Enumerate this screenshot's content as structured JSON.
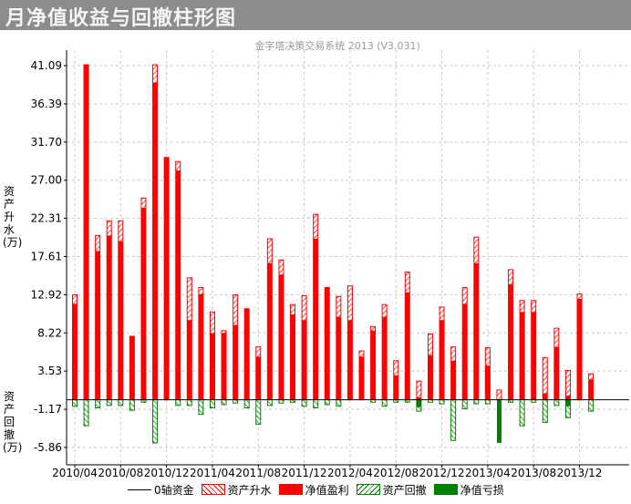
{
  "window": {
    "title": "月净值收益与回撤柱形图"
  },
  "chart_data": {
    "type": "bar",
    "subtitle": "金字塔决策交易系统 2013 (V3.031)",
    "ylabel_top": "资产升水(万)",
    "ylabel_bottom": "资产回撤(万)",
    "ylim": [
      -8.0,
      43.0
    ],
    "yticks": [
      41.09,
      36.39,
      31.7,
      27.0,
      22.31,
      17.61,
      12.92,
      8.22,
      3.53,
      -1.17,
      -5.86
    ],
    "ytick_labels": [
      "41.09",
      "36.39",
      "31.70",
      "27.00",
      "22.31",
      "17.61",
      "12.92",
      "8.22",
      "3.53",
      "-1.17",
      "-5.86"
    ],
    "x_tick_labels": [
      {
        "label": "2010/04",
        "index": 0
      },
      {
        "label": "2010/08",
        "index": 4
      },
      {
        "label": "2010/12",
        "index": 8
      },
      {
        "label": "2011/04",
        "index": 12
      },
      {
        "label": "2011/08",
        "index": 16
      },
      {
        "label": "2011/12",
        "index": 20
      },
      {
        "label": "2012/04",
        "index": 24
      },
      {
        "label": "2012/08",
        "index": 28
      },
      {
        "label": "2012/12",
        "index": 32
      },
      {
        "label": "2013/04",
        "index": 36
      },
      {
        "label": "2013/08",
        "index": 40
      },
      {
        "label": "2013/12",
        "index": 44
      }
    ],
    "grid": true,
    "legend_position": "bottom",
    "colors": {
      "profit": "#ff0000",
      "loss": "#008000",
      "zero_line": "#000000",
      "grid": "#c8c8c8",
      "title_bg": "#8c8c8c"
    },
    "legend": [
      "0轴资金",
      "资产升水",
      "净值盈利",
      "资产回撤",
      "净值亏损"
    ],
    "months": [
      {
        "up": 12.9,
        "profit": 11.8,
        "draw": -0.8,
        "loss": 0
      },
      {
        "up": 41.2,
        "profit": 41.2,
        "draw": -3.2,
        "loss": 0
      },
      {
        "up": 20.2,
        "profit": 18.3,
        "draw": -1.0,
        "loss": 0
      },
      {
        "up": 22.0,
        "profit": 20.2,
        "draw": -0.7,
        "loss": 0
      },
      {
        "up": 22.0,
        "profit": 19.5,
        "draw": -0.7,
        "loss": 0
      },
      {
        "up": 7.8,
        "profit": 7.8,
        "draw": -1.3,
        "loss": 0
      },
      {
        "up": 24.8,
        "profit": 23.6,
        "draw": -0.3,
        "loss": 0
      },
      {
        "up": 41.2,
        "profit": 39.0,
        "draw": -5.3,
        "loss": 0
      },
      {
        "up": 29.8,
        "profit": 29.8,
        "draw": 0,
        "loss": 0
      },
      {
        "up": 29.3,
        "profit": 28.2,
        "draw": -0.7,
        "loss": 0
      },
      {
        "up": 15.0,
        "profit": 9.8,
        "draw": -0.7,
        "loss": 0
      },
      {
        "up": 13.8,
        "profit": 13.0,
        "draw": -1.8,
        "loss": 0
      },
      {
        "up": 10.8,
        "profit": 8.2,
        "draw": -1.0,
        "loss": 0
      },
      {
        "up": 8.5,
        "profit": 8.2,
        "draw": -0.6,
        "loss": 0
      },
      {
        "up": 12.9,
        "profit": 9.2,
        "draw": -0.4,
        "loss": 0
      },
      {
        "up": 11.2,
        "profit": 11.2,
        "draw": -1.0,
        "loss": 0
      },
      {
        "up": 6.5,
        "profit": 5.3,
        "draw": -3.0,
        "loss": 0
      },
      {
        "up": 19.8,
        "profit": 16.8,
        "draw": -0.7,
        "loss": 0
      },
      {
        "up": 17.2,
        "profit": 15.4,
        "draw": -0.4,
        "loss": 0
      },
      {
        "up": 11.7,
        "profit": 10.5,
        "draw": -0.3,
        "loss": 0
      },
      {
        "up": 12.8,
        "profit": 9.8,
        "draw": -0.8,
        "loss": 0
      },
      {
        "up": 22.8,
        "profit": 19.8,
        "draw": -1.0,
        "loss": 0
      },
      {
        "up": 13.8,
        "profit": 13.8,
        "draw": -0.6,
        "loss": 0
      },
      {
        "up": 12.7,
        "profit": 10.2,
        "draw": -0.8,
        "loss": 0
      },
      {
        "up": 14.0,
        "profit": 9.8,
        "draw": 0,
        "loss": 0
      },
      {
        "up": 6.0,
        "profit": 5.3,
        "draw": 0,
        "loss": 0
      },
      {
        "up": 9.0,
        "profit": 8.5,
        "draw": -0.3,
        "loss": 0
      },
      {
        "up": 11.7,
        "profit": 10.2,
        "draw": -0.8,
        "loss": 0
      },
      {
        "up": 4.8,
        "profit": 3.0,
        "draw": -0.3,
        "loss": 0
      },
      {
        "up": 15.7,
        "profit": 13.2,
        "draw": -0.3,
        "loss": 0
      },
      {
        "up": 2.3,
        "profit": 0.3,
        "draw": -1.4,
        "loss": -0.9
      },
      {
        "up": 8.1,
        "profit": 5.5,
        "draw": -0.3,
        "loss": 0
      },
      {
        "up": 11.4,
        "profit": 9.8,
        "draw": -0.5,
        "loss": 0
      },
      {
        "up": 6.5,
        "profit": 4.8,
        "draw": -5.0,
        "loss": 0
      },
      {
        "up": 13.8,
        "profit": 11.8,
        "draw": -1.1,
        "loss": 0
      },
      {
        "up": 20.0,
        "profit": 16.8,
        "draw": -0.5,
        "loss": 0
      },
      {
        "up": 6.4,
        "profit": 4.2,
        "draw": -0.5,
        "loss": 0
      },
      {
        "up": 1.2,
        "profit": 0,
        "draw": 0,
        "loss": -5.3
      },
      {
        "up": 16.0,
        "profit": 14.2,
        "draw": -0.3,
        "loss": 0
      },
      {
        "up": 12.2,
        "profit": 10.8,
        "draw": -3.2,
        "loss": 0
      },
      {
        "up": 12.2,
        "profit": 10.8,
        "draw": -0.3,
        "loss": 0
      },
      {
        "up": 5.2,
        "profit": 0.8,
        "draw": -2.8,
        "loss": 0
      },
      {
        "up": 8.8,
        "profit": 6.5,
        "draw": -0.7,
        "loss": 0
      },
      {
        "up": 3.6,
        "profit": 0.5,
        "draw": -2.2,
        "loss": -0.8
      },
      {
        "up": 13.0,
        "profit": 12.4,
        "draw": 0,
        "loss": 0
      },
      {
        "up": 3.2,
        "profit": 2.5,
        "draw": -1.4,
        "loss": 0
      }
    ]
  }
}
